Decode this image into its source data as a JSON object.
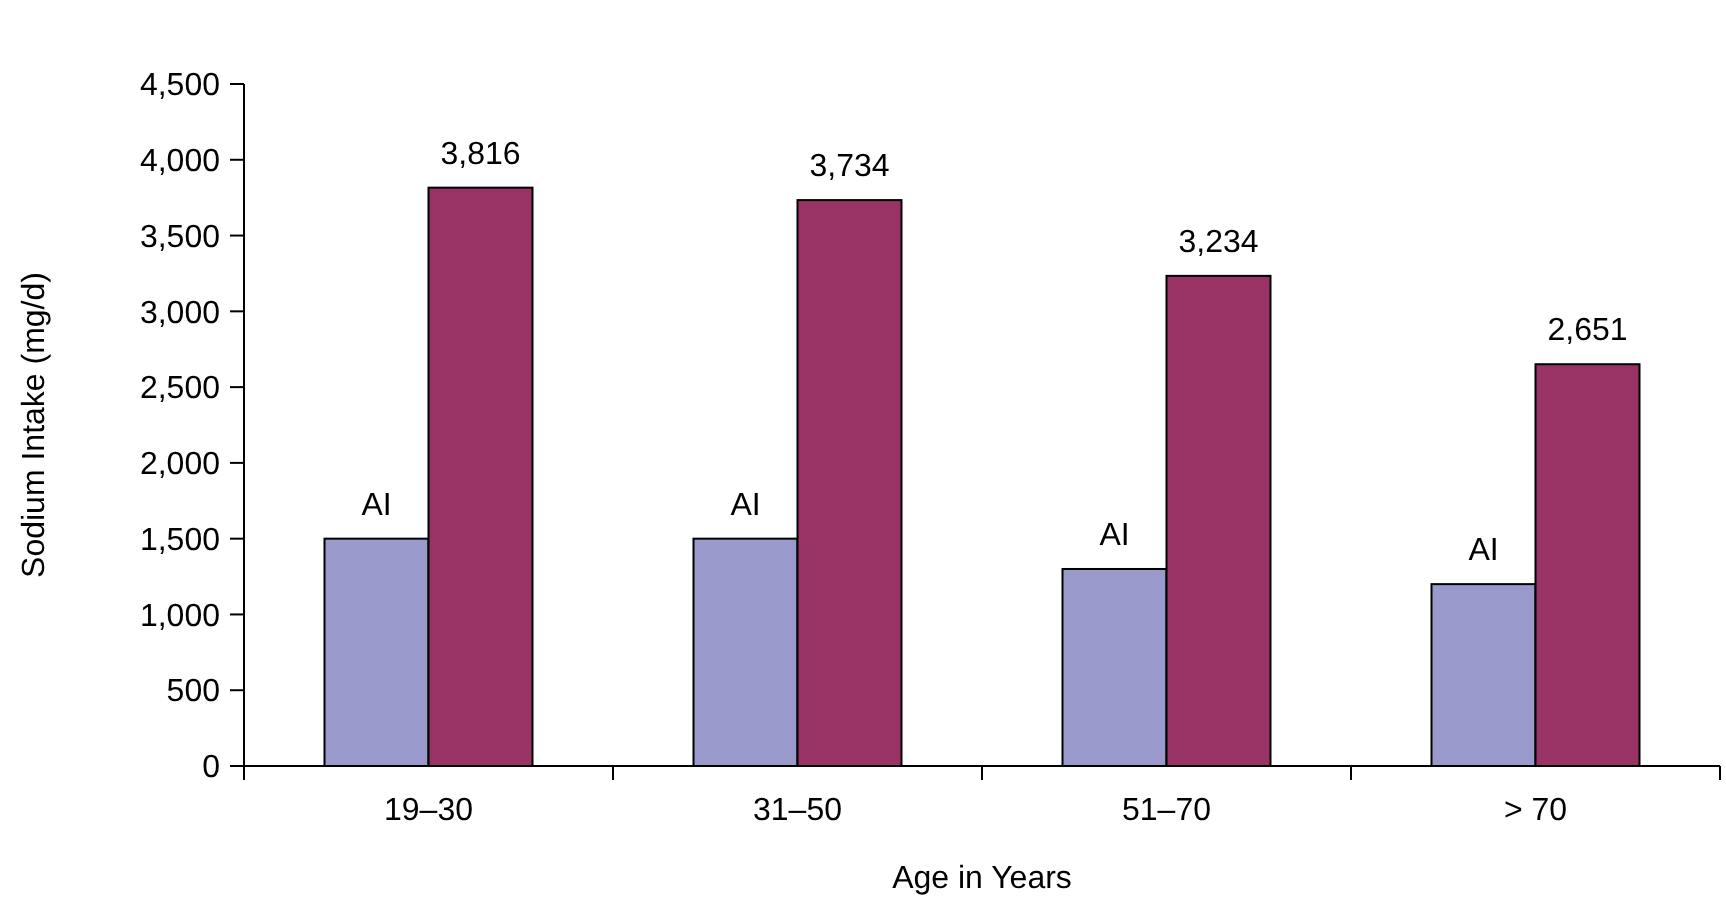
{
  "chart_data": {
    "type": "bar",
    "xlabel": "Age in Years",
    "ylabel": "Sodium Intake (mg/d)",
    "categories": [
      "19–30",
      "31–50",
      "51–70",
      "> 70"
    ],
    "series": [
      {
        "color": "#9999cc",
        "values": [
          1500,
          1500,
          1300,
          1200
        ],
        "value_labels": [
          "AI",
          "AI",
          "AI",
          "AI"
        ]
      },
      {
        "color": "#993366",
        "values": [
          3816,
          3734,
          3234,
          2651
        ],
        "value_labels": [
          "3,816",
          "3,734",
          "3,234",
          "2,651"
        ]
      }
    ],
    "ylim": [
      0,
      4500
    ],
    "yticks": [
      {
        "value": 0,
        "label": "0"
      },
      {
        "value": 500,
        "label": "500"
      },
      {
        "value": 1000,
        "label": "1,000"
      },
      {
        "value": 1500,
        "label": "1,500"
      },
      {
        "value": 2000,
        "label": "2,000"
      },
      {
        "value": 2500,
        "label": "2,500"
      },
      {
        "value": 3000,
        "label": "3,000"
      },
      {
        "value": 3500,
        "label": "3,500"
      },
      {
        "value": 4000,
        "label": "4,000"
      },
      {
        "value": 4500,
        "label": "4,500"
      }
    ],
    "grid": false
  }
}
